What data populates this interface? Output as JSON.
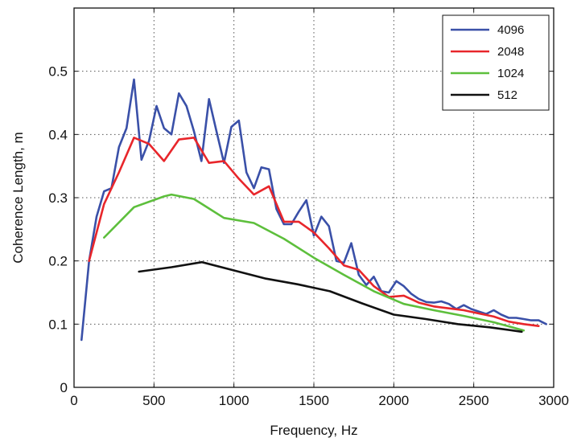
{
  "chart_data": {
    "type": "line",
    "title": "",
    "xlabel": "Frequency, Hz",
    "ylabel": "Coherence Length, m",
    "xlim": [
      0,
      3000
    ],
    "ylim": [
      0,
      0.6
    ],
    "x_ticks": [
      0,
      500,
      1000,
      1500,
      2000,
      2500,
      3000
    ],
    "x_tick_labels": [
      "0",
      "500",
      "1000",
      "1500",
      "2000",
      "2500",
      "3000"
    ],
    "y_ticks": [
      0,
      0.1,
      0.2,
      0.3,
      0.4,
      0.5
    ],
    "y_tick_labels": [
      "0",
      "0.1",
      "0.2",
      "0.3",
      "0.4",
      "0.5"
    ],
    "grid": true,
    "legend_position": "top-right",
    "series": [
      {
        "name": "4096",
        "color": "#3a50a8",
        "points": [
          [
            47,
            0.075
          ],
          [
            94,
            0.2
          ],
          [
            141,
            0.27
          ],
          [
            188,
            0.31
          ],
          [
            234,
            0.315
          ],
          [
            281,
            0.38
          ],
          [
            328,
            0.41
          ],
          [
            375,
            0.487
          ],
          [
            422,
            0.36
          ],
          [
            469,
            0.39
          ],
          [
            516,
            0.445
          ],
          [
            563,
            0.41
          ],
          [
            609,
            0.4
          ],
          [
            656,
            0.465
          ],
          [
            703,
            0.445
          ],
          [
            750,
            0.405
          ],
          [
            797,
            0.358
          ],
          [
            844,
            0.456
          ],
          [
            891,
            0.405
          ],
          [
            938,
            0.355
          ],
          [
            984,
            0.412
          ],
          [
            1031,
            0.422
          ],
          [
            1078,
            0.34
          ],
          [
            1125,
            0.315
          ],
          [
            1172,
            0.348
          ],
          [
            1219,
            0.345
          ],
          [
            1266,
            0.282
          ],
          [
            1313,
            0.258
          ],
          [
            1359,
            0.258
          ],
          [
            1406,
            0.278
          ],
          [
            1453,
            0.296
          ],
          [
            1500,
            0.24
          ],
          [
            1547,
            0.27
          ],
          [
            1594,
            0.255
          ],
          [
            1641,
            0.2
          ],
          [
            1688,
            0.197
          ],
          [
            1734,
            0.228
          ],
          [
            1781,
            0.178
          ],
          [
            1828,
            0.162
          ],
          [
            1875,
            0.175
          ],
          [
            1922,
            0.152
          ],
          [
            1969,
            0.15
          ],
          [
            2016,
            0.168
          ],
          [
            2063,
            0.16
          ],
          [
            2109,
            0.148
          ],
          [
            2156,
            0.14
          ],
          [
            2203,
            0.135
          ],
          [
            2250,
            0.134
          ],
          [
            2297,
            0.136
          ],
          [
            2344,
            0.132
          ],
          [
            2391,
            0.124
          ],
          [
            2438,
            0.13
          ],
          [
            2484,
            0.124
          ],
          [
            2531,
            0.12
          ],
          [
            2578,
            0.116
          ],
          [
            2625,
            0.122
          ],
          [
            2672,
            0.115
          ],
          [
            2719,
            0.11
          ],
          [
            2766,
            0.11
          ],
          [
            2813,
            0.108
          ],
          [
            2859,
            0.106
          ],
          [
            2906,
            0.106
          ],
          [
            2953,
            0.1
          ]
        ]
      },
      {
        "name": "2048",
        "color": "#e8262b",
        "points": [
          [
            94,
            0.2
          ],
          [
            188,
            0.29
          ],
          [
            281,
            0.34
          ],
          [
            375,
            0.395
          ],
          [
            469,
            0.385
          ],
          [
            563,
            0.358
          ],
          [
            656,
            0.392
          ],
          [
            750,
            0.395
          ],
          [
            844,
            0.355
          ],
          [
            938,
            0.358
          ],
          [
            1031,
            0.33
          ],
          [
            1125,
            0.305
          ],
          [
            1219,
            0.318
          ],
          [
            1313,
            0.262
          ],
          [
            1406,
            0.262
          ],
          [
            1500,
            0.245
          ],
          [
            1594,
            0.22
          ],
          [
            1688,
            0.193
          ],
          [
            1781,
            0.186
          ],
          [
            1875,
            0.16
          ],
          [
            1969,
            0.143
          ],
          [
            2063,
            0.145
          ],
          [
            2156,
            0.134
          ],
          [
            2250,
            0.128
          ],
          [
            2344,
            0.125
          ],
          [
            2438,
            0.122
          ],
          [
            2531,
            0.117
          ],
          [
            2625,
            0.112
          ],
          [
            2719,
            0.104
          ],
          [
            2813,
            0.1
          ],
          [
            2906,
            0.097
          ]
        ]
      },
      {
        "name": "1024",
        "color": "#5dbf3c",
        "points": [
          [
            188,
            0.237
          ],
          [
            375,
            0.285
          ],
          [
            563,
            0.302
          ],
          [
            609,
            0.305
          ],
          [
            750,
            0.298
          ],
          [
            938,
            0.268
          ],
          [
            1125,
            0.26
          ],
          [
            1313,
            0.235
          ],
          [
            1500,
            0.205
          ],
          [
            1688,
            0.178
          ],
          [
            1875,
            0.152
          ],
          [
            2063,
            0.132
          ],
          [
            2250,
            0.122
          ],
          [
            2438,
            0.113
          ],
          [
            2625,
            0.103
          ],
          [
            2813,
            0.09
          ]
        ]
      },
      {
        "name": "512",
        "color": "#111111",
        "points": [
          [
            406,
            0.183
          ],
          [
            609,
            0.19
          ],
          [
            800,
            0.198
          ],
          [
            1000,
            0.185
          ],
          [
            1200,
            0.172
          ],
          [
            1400,
            0.163
          ],
          [
            1600,
            0.152
          ],
          [
            1800,
            0.133
          ],
          [
            2000,
            0.115
          ],
          [
            2200,
            0.108
          ],
          [
            2400,
            0.1
          ],
          [
            2600,
            0.095
          ],
          [
            2800,
            0.088
          ]
        ]
      }
    ]
  }
}
